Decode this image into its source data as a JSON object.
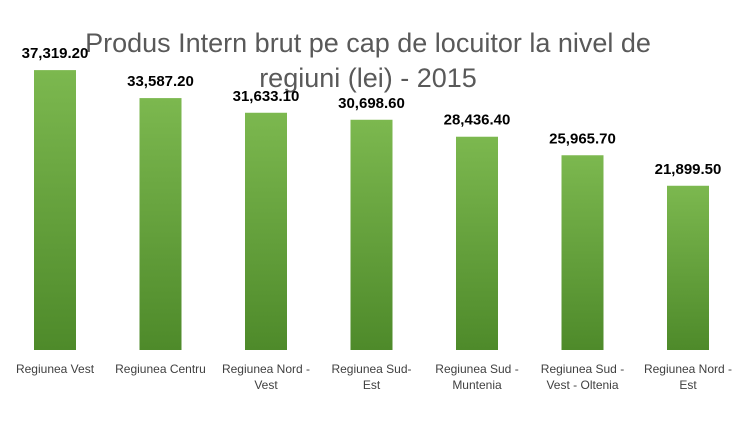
{
  "chart_data": {
    "type": "bar",
    "title": "Produs Intern brut pe cap de locuitor la nivel de regiuni (lei) - 2015",
    "title_lines": [
      "Produs Intern brut pe cap de locuitor la nivel de",
      "regiuni (lei) - 2015"
    ],
    "xlabel": "",
    "ylabel": "",
    "categories": [
      "Regiunea Vest",
      "Regiunea Centru",
      "Regiunea Nord - Vest",
      "Regiunea Sud-Est",
      "Regiunea Sud - Muntenia",
      "Regiunea Sud - Vest - Oltenia",
      "Regiunea Nord - Est"
    ],
    "category_lines": [
      [
        "Regiunea Vest"
      ],
      [
        "Regiunea Centru"
      ],
      [
        "Regiunea Nord -",
        "Vest"
      ],
      [
        "Regiunea Sud-",
        "Est"
      ],
      [
        "Regiunea Sud -",
        "Muntenia"
      ],
      [
        "Regiunea Sud -",
        "Vest - Oltenia"
      ],
      [
        "Regiunea Nord -",
        "Est"
      ]
    ],
    "values": [
      37319.2,
      33587.2,
      31633.1,
      30698.6,
      28436.4,
      25965.7,
      21899.5
    ],
    "data_labels": [
      "37,319.20",
      "33,587.20",
      "31,633.10",
      "30,698.60",
      "28,436.40",
      "25,965.70",
      "21,899.50"
    ],
    "ylim": [
      0,
      40000
    ],
    "grid": false,
    "legend": "none",
    "colors": {
      "bar_top": "#7CB84F",
      "bar_bottom": "#4E8A2A",
      "title": "#595959",
      "tick": "#404040",
      "data_label": "#000000"
    }
  }
}
